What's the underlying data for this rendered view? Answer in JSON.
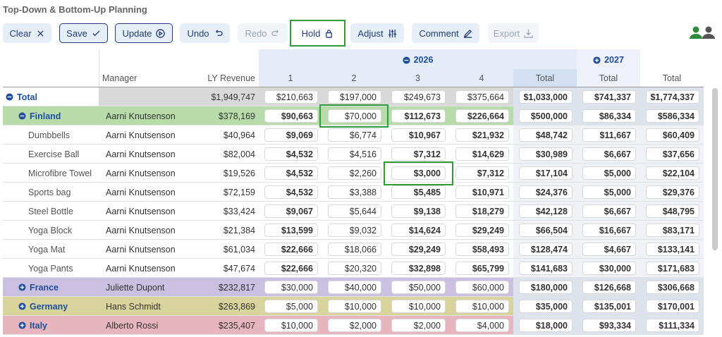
{
  "header": {
    "title": "Top-Down & Bottom-Up Planning"
  },
  "toolbar": {
    "buttons": [
      {
        "label": "Clear",
        "style": "filled"
      },
      {
        "label": "Save",
        "style": "outlined"
      },
      {
        "label": "Update",
        "style": "outlined"
      },
      {
        "label": "Undo",
        "style": "filled"
      },
      {
        "label": "Redo",
        "style": "disabled"
      },
      {
        "label": "Hold",
        "style": "plain"
      },
      {
        "label": "Adjust",
        "style": "filled"
      },
      {
        "label": "Comment",
        "style": "filled"
      },
      {
        "label": "Export",
        "style": "disabled"
      }
    ]
  },
  "table": {
    "year_groups": [
      {
        "label": "2026",
        "expanded": true
      },
      {
        "label": "2027",
        "expanded": false
      }
    ],
    "columns": [
      "Manager",
      "LY Revenue",
      "1",
      "2",
      "3",
      "4",
      "Total",
      "Total",
      "Total"
    ],
    "rows": [
      {
        "kind": "total",
        "color": "#d9d9d9",
        "label": "Total",
        "manager": null,
        "cells": [
          "$1,949,747",
          "$210,663",
          "$197,000",
          "$249,673",
          "$375,664",
          "$1,033,000",
          "$741,337",
          "$1,774,337"
        ]
      },
      {
        "kind": "expanded",
        "color": "#b7dcaa",
        "label": "Finland",
        "manager": "Aarni Knutsenson",
        "cells": [
          "$378,169",
          "$90,663",
          "$70,000",
          "$112,673",
          "$226,664",
          "$500,000",
          "$86,334",
          "$586,334"
        ]
      },
      {
        "kind": "item",
        "color": "#ffffff",
        "label": "Dumbbells",
        "manager": "Aarni Knutsenson",
        "cells": [
          "$40,964",
          "$9,069",
          "$6,774",
          "$10,967",
          "$21,932",
          "$48,742",
          "$11,667",
          "$60,409"
        ]
      },
      {
        "kind": "item",
        "color": "#ffffff",
        "label": "Exercise Ball",
        "manager": "Aarni Knutsenson",
        "cells": [
          "$82,004",
          "$4,532",
          "$4,516",
          "$7,312",
          "$14,629",
          "$30,989",
          "$6,667",
          "$37,656"
        ]
      },
      {
        "kind": "item",
        "color": "#ffffff",
        "label": "Microfibre Towel",
        "manager": "Aarni Knutsenson",
        "cells": [
          "$19,526",
          "$4,532",
          "$2,260",
          "$3,000",
          "$7,312",
          "$17,104",
          "$5,000",
          "$22,104"
        ]
      },
      {
        "kind": "item",
        "color": "#ffffff",
        "label": "Sports bag",
        "manager": "Aarni Knutsenson",
        "cells": [
          "$72,159",
          "$4,532",
          "$3,388",
          "$5,485",
          "$10,971",
          "$24,376",
          "$5,000",
          "$29,376"
        ]
      },
      {
        "kind": "item",
        "color": "#ffffff",
        "label": "Steel Bottle",
        "manager": "Aarni Knutsenson",
        "cells": [
          "$33,424",
          "$9,067",
          "$5,644",
          "$9,138",
          "$18,279",
          "$42,128",
          "$6,667",
          "$48,795"
        ]
      },
      {
        "kind": "item",
        "color": "#ffffff",
        "label": "Yoga Block",
        "manager": "Aarni Knutsenson",
        "cells": [
          "$21,384",
          "$13,599",
          "$9,032",
          "$14,624",
          "$29,249",
          "$66,504",
          "$16,667",
          "$83,171"
        ]
      },
      {
        "kind": "item",
        "color": "#ffffff",
        "label": "Yoga Mat",
        "manager": "Aarni Knutsenson",
        "cells": [
          "$61,034",
          "$22,666",
          "$18,066",
          "$29,249",
          "$58,493",
          "$128,474",
          "$4,667",
          "$133,141"
        ]
      },
      {
        "kind": "item",
        "color": "#ffffff",
        "label": "Yoga Pants",
        "manager": "Aarni Knutsenson",
        "cells": [
          "$47,674",
          "$22,666",
          "$20,320",
          "$32,898",
          "$65,799",
          "$141,683",
          "$30,000",
          "$171,683"
        ]
      },
      {
        "kind": "collapsed",
        "color": "#cbc0e2",
        "label": "France",
        "manager": "Juliette Dupont",
        "cells": [
          "$232,817",
          "$30,000",
          "$40,000",
          "$50,000",
          "$60,000",
          "$180,000",
          "$126,668",
          "$306,668"
        ]
      },
      {
        "kind": "collapsed",
        "color": "#d9d49c",
        "label": "Germany",
        "manager": "Hans Schmidt",
        "cells": [
          "$263,869",
          "$5,000",
          "$10,000",
          "$10,000",
          "$10,000",
          "$35,000",
          "$135,001",
          "$170,001"
        ]
      },
      {
        "kind": "collapsed",
        "color": "#e6b5bd",
        "label": "Italy",
        "manager": "Alberto Rossi",
        "cells": [
          "$235,407",
          "$10,000",
          "$2,000",
          "$2,000",
          "$4,000",
          "$18,000",
          "$93,334",
          "$111,334"
        ]
      }
    ]
  }
}
